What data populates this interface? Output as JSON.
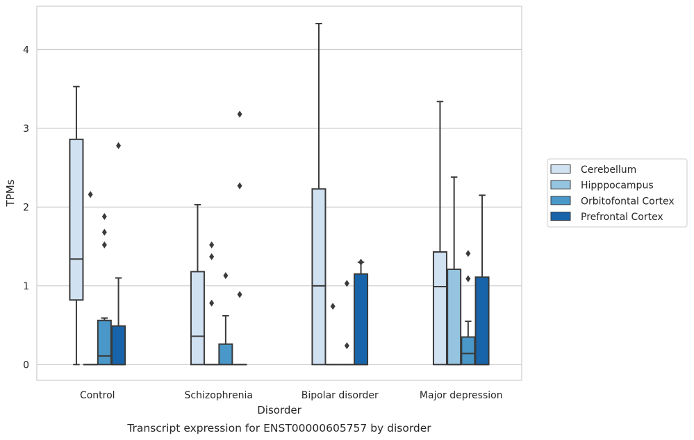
{
  "caption": "Transcript expression for ENST00000605757 by disorder",
  "chart_data": {
    "type": "boxplot",
    "xlabel": "Disorder",
    "ylabel": "TPMs",
    "ylim": [
      -0.2,
      4.55
    ],
    "yticks": [
      "0",
      "1",
      "2",
      "3",
      "4"
    ],
    "categories": [
      "Control",
      "Schizophrenia",
      "Bipolar disorder",
      "Major depression"
    ],
    "grid": "horizontal",
    "legend_position": "right",
    "series": [
      {
        "name": "Cerebellum",
        "color": "#d0e1f2",
        "boxes": [
          {
            "min": 0,
            "q1": 0.82,
            "median": 1.34,
            "q3": 2.86,
            "max": 3.53,
            "outliers": []
          },
          {
            "min": 0,
            "q1": 0,
            "median": 0.36,
            "q3": 1.18,
            "max": 2.03,
            "outliers": []
          },
          {
            "min": 0,
            "q1": 0,
            "median": 1.0,
            "q3": 2.23,
            "max": 4.33,
            "outliers": []
          },
          {
            "min": 0,
            "q1": 0,
            "median": 0.99,
            "q3": 1.43,
            "max": 3.34,
            "outliers": []
          }
        ]
      },
      {
        "name": "Hipppocampus",
        "color": "#94c4df",
        "boxes": [
          {
            "min": 0,
            "q1": 0,
            "median": 0,
            "q3": 0,
            "max": 0,
            "outliers": [
              2.16
            ]
          },
          {
            "min": 0,
            "q1": 0,
            "median": 0,
            "q3": 0,
            "max": 0,
            "outliers": [
              1.52,
              1.37,
              0.78
            ]
          },
          {
            "min": 0,
            "q1": 0,
            "median": 0,
            "q3": 0,
            "max": 0,
            "outliers": [
              0.74
            ]
          },
          {
            "min": 0,
            "q1": 0,
            "median": 0,
            "q3": 1.21,
            "max": 2.38,
            "outliers": []
          }
        ]
      },
      {
        "name": "Orbitofontal Cortex",
        "color": "#4a98c9",
        "boxes": [
          {
            "min": 0,
            "q1": 0,
            "median": 0.11,
            "q3": 0.56,
            "max": 0.59,
            "outliers": [
              1.88,
              1.68,
              1.52
            ]
          },
          {
            "min": 0,
            "q1": 0,
            "median": 0,
            "q3": 0.26,
            "max": 0.62,
            "outliers": [
              1.13
            ]
          },
          {
            "min": 0,
            "q1": 0,
            "median": 0,
            "q3": 0,
            "max": 0,
            "outliers": [
              1.03,
              0.24
            ]
          },
          {
            "min": 0,
            "q1": 0,
            "median": 0.14,
            "q3": 0.35,
            "max": 0.55,
            "outliers": [
              1.41,
              1.09
            ]
          }
        ]
      },
      {
        "name": "Prefrontal Cortex",
        "color": "#1764ab",
        "boxes": [
          {
            "min": 0,
            "q1": 0,
            "median": 0,
            "q3": 0.49,
            "max": 1.1,
            "outliers": [
              2.78
            ]
          },
          {
            "min": 0,
            "q1": 0,
            "median": 0,
            "q3": 0,
            "max": 0,
            "outliers": [
              3.18,
              2.27,
              0.89
            ]
          },
          {
            "min": 0,
            "q1": 0,
            "median": 0,
            "q3": 1.15,
            "max": 1.3,
            "outliers": [
              1.3
            ]
          },
          {
            "min": 0,
            "q1": 0,
            "median": 0,
            "q3": 1.11,
            "max": 2.15,
            "outliers": []
          }
        ]
      }
    ]
  }
}
